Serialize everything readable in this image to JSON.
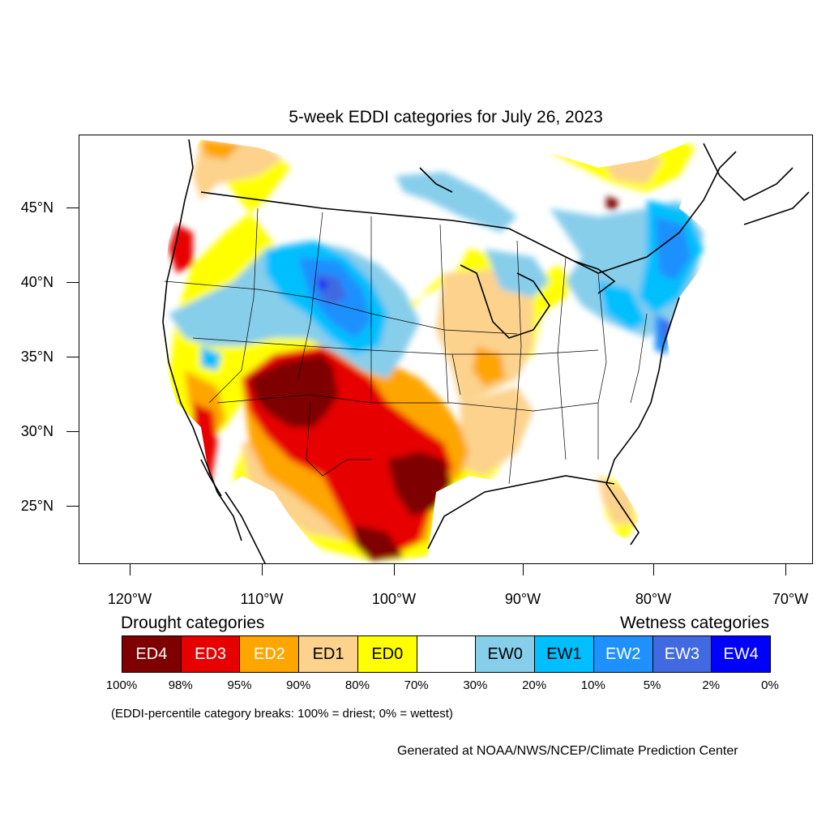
{
  "title": "5-week EDDI categories for July 26, 2023",
  "latitude_labels": [
    "45°N",
    "40°N",
    "35°N",
    "30°N",
    "25°N"
  ],
  "longitude_labels": [
    "120°W",
    "110°W",
    "100°W",
    "90°W",
    "80°W",
    "70°W"
  ],
  "drought_heading": "Drought categories",
  "wetness_heading": "Wetness categories",
  "legend": {
    "categories": [
      {
        "label": "ED4",
        "color": "#7f0000",
        "text_color": "#ffffff"
      },
      {
        "label": "ED3",
        "color": "#e60000",
        "text_color": "#ffffff"
      },
      {
        "label": "ED2",
        "color": "#ffa500",
        "text_color": "#ffffff"
      },
      {
        "label": "ED1",
        "color": "#fcd28c",
        "text_color": "#000000"
      },
      {
        "label": "ED0",
        "color": "#ffff00",
        "text_color": "#000000"
      },
      {
        "label": "",
        "color": "#ffffff",
        "text_color": "#000000"
      },
      {
        "label": "EW0",
        "color": "#87ceeb",
        "text_color": "#000000"
      },
      {
        "label": "EW1",
        "color": "#00bfff",
        "text_color": "#000000"
      },
      {
        "label": "EW2",
        "color": "#1e90ff",
        "text_color": "#ffffff"
      },
      {
        "label": "EW3",
        "color": "#4169e1",
        "text_color": "#ffffff"
      },
      {
        "label": "EW4",
        "color": "#0000ff",
        "text_color": "#ffffff"
      }
    ],
    "breaks": [
      "100%",
      "98%",
      "95%",
      "90%",
      "80%",
      "70%",
      "30%",
      "20%",
      "10%",
      "5%",
      "2%",
      "0%"
    ]
  },
  "note": "(EDDI-percentile category breaks: 100% = driest; 0% = wettest)",
  "credit": "Generated at NOAA/NWS/NCEP/Climate Prediction Center"
}
